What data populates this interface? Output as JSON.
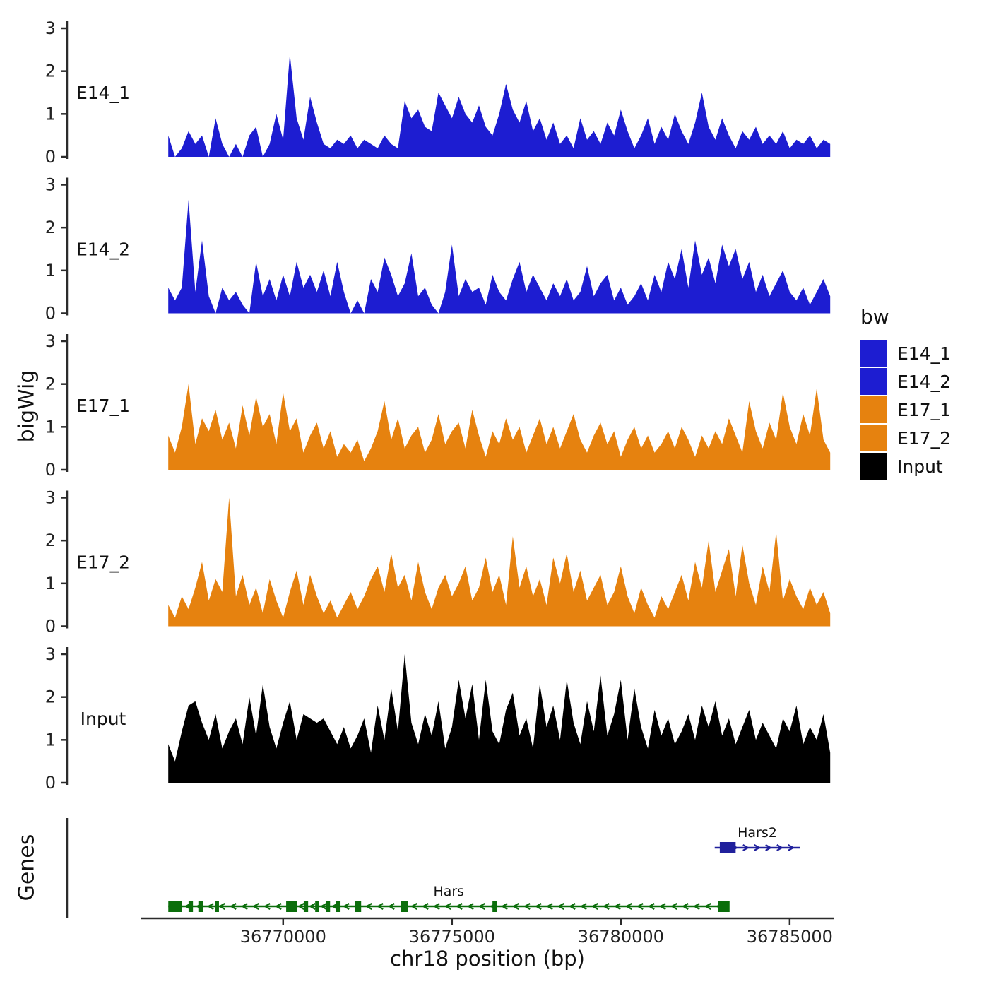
{
  "labels": {
    "ylabel": "bigWig",
    "xlabel": "chr18 position (bp)",
    "genes": "Genes"
  },
  "legend": {
    "title": "bw",
    "items": [
      {
        "label": "E14_1",
        "color": "#1d1dd1"
      },
      {
        "label": "E14_2",
        "color": "#1d1dd1"
      },
      {
        "label": "E17_1",
        "color": "#e6820f"
      },
      {
        "label": "E17_2",
        "color": "#e6820f"
      },
      {
        "label": "Input",
        "color": "#000000"
      }
    ]
  },
  "chart_data": {
    "type": "area",
    "title": "",
    "xlabel": "chr18 position (bp)",
    "ylabel": "bigWig",
    "x_range": [
      36765800,
      36786300
    ],
    "x_ticks": [
      36770000,
      36775000,
      36780000,
      36785000
    ],
    "y_ticks": [
      0,
      1,
      2,
      3
    ],
    "ylim": [
      0,
      3
    ],
    "x_start_bp": 36766600,
    "x_step_bp": 200,
    "tracks": [
      {
        "name": "E14_1",
        "color": "#1d1dd1",
        "values": [
          0.5,
          0,
          0.2,
          0.6,
          0.3,
          0.5,
          0,
          0.9,
          0.3,
          0,
          0.3,
          0,
          0.5,
          0.7,
          0,
          0.3,
          1.0,
          0.4,
          2.4,
          0.9,
          0.4,
          1.4,
          0.8,
          0.3,
          0.2,
          0.4,
          0.3,
          0.5,
          0.2,
          0.4,
          0.3,
          0.2,
          0.5,
          0.3,
          0.2,
          1.3,
          0.9,
          1.1,
          0.7,
          0.6,
          1.5,
          1.2,
          0.9,
          1.4,
          1.0,
          0.8,
          1.2,
          0.7,
          0.5,
          1.0,
          1.7,
          1.1,
          0.8,
          1.3,
          0.6,
          0.9,
          0.4,
          0.8,
          0.3,
          0.5,
          0.2,
          0.9,
          0.4,
          0.6,
          0.3,
          0.8,
          0.5,
          1.1,
          0.6,
          0.2,
          0.5,
          0.9,
          0.3,
          0.7,
          0.4,
          1.0,
          0.6,
          0.3,
          0.8,
          1.5,
          0.7,
          0.4,
          0.9,
          0.5,
          0.2,
          0.6,
          0.4,
          0.7,
          0.3,
          0.5,
          0.3,
          0.6,
          0.2,
          0.4,
          0.3,
          0.5,
          0.2,
          0.4,
          0.3
        ]
      },
      {
        "name": "E14_2",
        "color": "#1d1dd1",
        "values": [
          0.6,
          0.3,
          0.6,
          2.65,
          0.5,
          1.7,
          0.4,
          0,
          0.6,
          0.3,
          0.5,
          0.2,
          0,
          1.2,
          0.4,
          0.8,
          0.3,
          0.9,
          0.4,
          1.2,
          0.6,
          0.9,
          0.5,
          1.0,
          0.4,
          1.2,
          0.5,
          0,
          0.3,
          0,
          0.8,
          0.5,
          1.3,
          0.9,
          0.4,
          0.7,
          1.4,
          0.4,
          0.6,
          0.2,
          0,
          0.5,
          1.6,
          0.4,
          0.8,
          0.5,
          0.6,
          0.2,
          0.9,
          0.5,
          0.3,
          0.8,
          1.2,
          0.5,
          0.9,
          0.6,
          0.3,
          0.7,
          0.4,
          0.8,
          0.3,
          0.5,
          1.1,
          0.4,
          0.7,
          0.9,
          0.3,
          0.6,
          0.2,
          0.4,
          0.7,
          0.3,
          0.9,
          0.5,
          1.2,
          0.8,
          1.5,
          0.6,
          1.7,
          0.9,
          1.3,
          0.7,
          1.6,
          1.1,
          1.5,
          0.8,
          1.2,
          0.5,
          0.9,
          0.4,
          0.7,
          1.0,
          0.5,
          0.3,
          0.6,
          0.2,
          0.5,
          0.8,
          0.4
        ]
      },
      {
        "name": "E17_1",
        "color": "#e6820f",
        "values": [
          0.8,
          0.4,
          1.0,
          2.0,
          0.6,
          1.2,
          0.9,
          1.4,
          0.7,
          1.1,
          0.5,
          1.5,
          0.8,
          1.7,
          1.0,
          1.3,
          0.6,
          1.8,
          0.9,
          1.2,
          0.4,
          0.8,
          1.1,
          0.5,
          0.9,
          0.3,
          0.6,
          0.4,
          0.7,
          0.2,
          0.5,
          0.9,
          1.6,
          0.7,
          1.2,
          0.5,
          0.8,
          1.0,
          0.4,
          0.7,
          1.3,
          0.6,
          0.9,
          1.1,
          0.5,
          1.4,
          0.8,
          0.3,
          0.9,
          0.6,
          1.2,
          0.7,
          1.0,
          0.4,
          0.8,
          1.2,
          0.6,
          1.0,
          0.5,
          0.9,
          1.3,
          0.7,
          0.4,
          0.8,
          1.1,
          0.6,
          0.9,
          0.3,
          0.7,
          1.0,
          0.5,
          0.8,
          0.4,
          0.6,
          0.9,
          0.5,
          1.0,
          0.7,
          0.3,
          0.8,
          0.5,
          0.9,
          0.6,
          1.2,
          0.8,
          0.4,
          1.6,
          0.9,
          0.5,
          1.1,
          0.7,
          1.8,
          1.0,
          0.6,
          1.3,
          0.8,
          1.9,
          0.7,
          0.4
        ]
      },
      {
        "name": "E17_2",
        "color": "#e6820f",
        "values": [
          0.5,
          0.2,
          0.7,
          0.4,
          0.9,
          1.5,
          0.6,
          1.1,
          0.8,
          3.0,
          0.7,
          1.2,
          0.5,
          0.9,
          0.3,
          1.1,
          0.6,
          0.2,
          0.8,
          1.3,
          0.5,
          1.2,
          0.7,
          0.3,
          0.6,
          0.2,
          0.5,
          0.8,
          0.4,
          0.7,
          1.1,
          1.4,
          0.8,
          1.7,
          0.9,
          1.2,
          0.6,
          1.5,
          0.8,
          0.4,
          0.9,
          1.2,
          0.7,
          1.0,
          1.4,
          0.6,
          0.9,
          1.6,
          0.8,
          1.2,
          0.5,
          2.1,
          0.9,
          1.4,
          0.7,
          1.1,
          0.5,
          1.6,
          1.0,
          1.7,
          0.8,
          1.3,
          0.6,
          0.9,
          1.2,
          0.5,
          0.8,
          1.4,
          0.7,
          0.3,
          0.9,
          0.5,
          0.2,
          0.7,
          0.4,
          0.8,
          1.2,
          0.6,
          1.5,
          0.9,
          2.0,
          0.8,
          1.3,
          1.8,
          0.7,
          1.9,
          1.0,
          0.5,
          1.4,
          0.8,
          2.2,
          0.6,
          1.1,
          0.7,
          0.4,
          0.9,
          0.5,
          0.8,
          0.3
        ]
      },
      {
        "name": "Input",
        "color": "#000000",
        "values": [
          0.9,
          0.5,
          1.2,
          1.8,
          1.9,
          1.4,
          1.0,
          1.6,
          0.8,
          1.2,
          1.5,
          0.9,
          2.0,
          1.1,
          2.3,
          1.3,
          0.8,
          1.4,
          1.9,
          1.0,
          1.6,
          1.5,
          1.4,
          1.5,
          1.2,
          0.9,
          1.3,
          0.8,
          1.1,
          1.5,
          0.7,
          1.8,
          1.0,
          2.2,
          1.2,
          3.0,
          1.4,
          0.9,
          1.6,
          1.1,
          1.9,
          0.8,
          1.3,
          2.4,
          1.5,
          2.3,
          1.0,
          2.4,
          1.2,
          0.9,
          1.7,
          2.1,
          1.1,
          1.5,
          0.8,
          2.3,
          1.3,
          1.8,
          1.0,
          2.4,
          1.4,
          0.9,
          1.9,
          1.2,
          2.5,
          1.1,
          1.6,
          2.4,
          1.0,
          2.2,
          1.3,
          0.8,
          1.7,
          1.1,
          1.5,
          0.9,
          1.2,
          1.6,
          1.0,
          1.8,
          1.3,
          1.9,
          1.1,
          1.5,
          0.9,
          1.3,
          1.7,
          1.0,
          1.4,
          1.1,
          0.8,
          1.5,
          1.2,
          1.8,
          0.9,
          1.3,
          1.0,
          1.6,
          0.7
        ]
      }
    ],
    "genes": [
      {
        "name": "Hars2",
        "strand": "+",
        "color": "#20209c",
        "row": 0,
        "start": 36782780,
        "end": 36785300,
        "exons": [
          [
            36782930,
            36783400
          ]
        ]
      },
      {
        "name": "Hars",
        "strand": "-",
        "color": "#0b6e0b",
        "row": 1,
        "start": 36766600,
        "end": 36783210,
        "exons": [
          [
            36766600,
            36767010
          ],
          [
            36767200,
            36767330
          ],
          [
            36767490,
            36767620
          ],
          [
            36767980,
            36768100
          ],
          [
            36770090,
            36770420
          ],
          [
            36770610,
            36770740
          ],
          [
            36770950,
            36771070
          ],
          [
            36771260,
            36771390
          ],
          [
            36771570,
            36771700
          ],
          [
            36772120,
            36772310
          ],
          [
            36773480,
            36773690
          ],
          [
            36776200,
            36776340
          ],
          [
            36782890,
            36783220
          ]
        ]
      }
    ]
  }
}
